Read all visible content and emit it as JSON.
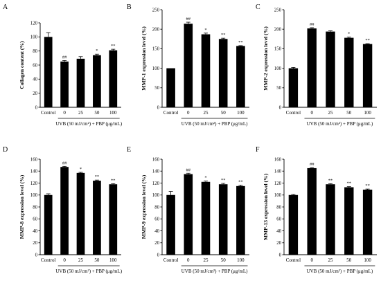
{
  "chart_data": [
    {
      "type": "bar",
      "panel": "A",
      "ylabel": "Collagen content (%)",
      "ylim": [
        0,
        120
      ],
      "yticks": [
        0,
        20,
        40,
        60,
        80,
        100,
        120
      ],
      "categories": [
        "Control",
        "0",
        "25",
        "50",
        "100"
      ],
      "values": [
        100,
        65,
        69,
        74,
        81
      ],
      "errors": [
        6,
        1.5,
        3,
        1.5,
        1.5
      ],
      "significance": [
        "",
        "##",
        "",
        "*",
        "**"
      ],
      "xlabel": "UVB (50 mJ/cm²) + PBP (μg/mL)"
    },
    {
      "type": "bar",
      "panel": "B",
      "ylabel": "MMP-1 expression level (%)",
      "ylim": [
        0,
        250
      ],
      "yticks": [
        0,
        50,
        100,
        150,
        200,
        250
      ],
      "categories": [
        "Control",
        "0",
        "25",
        "50",
        "100"
      ],
      "values": [
        100,
        214,
        187,
        175,
        157
      ],
      "errors": [
        0,
        4,
        3,
        2,
        1
      ],
      "significance": [
        "",
        "##",
        "*",
        "**",
        "**"
      ],
      "xlabel": "UVB (50 mJ/cm²) + PBP (μg/mL)"
    },
    {
      "type": "bar",
      "panel": "C",
      "ylabel": "MMP-2 expression level (%)",
      "ylim": [
        0,
        250
      ],
      "yticks": [
        0,
        50,
        100,
        150,
        200,
        250
      ],
      "categories": [
        "Control",
        "0",
        "25",
        "50",
        "100"
      ],
      "values": [
        100,
        202,
        194,
        178,
        162
      ],
      "errors": [
        2,
        2,
        2,
        2,
        1
      ],
      "significance": [
        "",
        "##",
        "",
        "*",
        "**"
      ],
      "xlabel": "UVB (50 mJ/cm²) + PBP (μg/mL)"
    },
    {
      "type": "bar",
      "panel": "D",
      "ylabel": "MMP-8 expression level (%)",
      "ylim": [
        0,
        160
      ],
      "yticks": [
        0,
        20,
        40,
        60,
        80,
        100,
        120,
        140,
        160
      ],
      "categories": [
        "Control",
        "0",
        "25",
        "50",
        "100"
      ],
      "values": [
        100,
        147,
        137,
        124,
        118
      ],
      "errors": [
        2,
        1,
        1,
        1,
        1
      ],
      "significance": [
        "",
        "##",
        "*",
        "**",
        "**"
      ],
      "xlabel": "UVB (50 mJ/cm²) + PBP (μg/mL)"
    },
    {
      "type": "bar",
      "panel": "E",
      "ylabel": "MMP-9 expression level (%)",
      "ylim": [
        0,
        160
      ],
      "yticks": [
        0,
        20,
        40,
        60,
        80,
        100,
        120,
        140,
        160
      ],
      "categories": [
        "Control",
        "0",
        "25",
        "50",
        "100"
      ],
      "values": [
        100,
        135,
        122,
        118,
        115
      ],
      "errors": [
        6,
        1.5,
        1.5,
        1.5,
        1.5
      ],
      "significance": [
        "",
        "##",
        "*",
        "**",
        "**"
      ],
      "xlabel": "UVB (50 mJ/cm²) + PBP (μg/mL)"
    },
    {
      "type": "bar",
      "panel": "F",
      "ylabel": "MMP-13 expression level (%)",
      "ylim": [
        0,
        160
      ],
      "yticks": [
        0,
        20,
        40,
        60,
        80,
        100,
        120,
        140,
        160
      ],
      "categories": [
        "Control",
        "0",
        "25",
        "50",
        "100"
      ],
      "values": [
        100,
        145,
        118,
        113,
        109
      ],
      "errors": [
        1,
        1,
        1,
        1,
        1
      ],
      "significance": [
        "",
        "##",
        "**",
        "**",
        "**"
      ],
      "xlabel": "UVB (50 mJ/cm²) + PBP (μg/mL)"
    }
  ]
}
